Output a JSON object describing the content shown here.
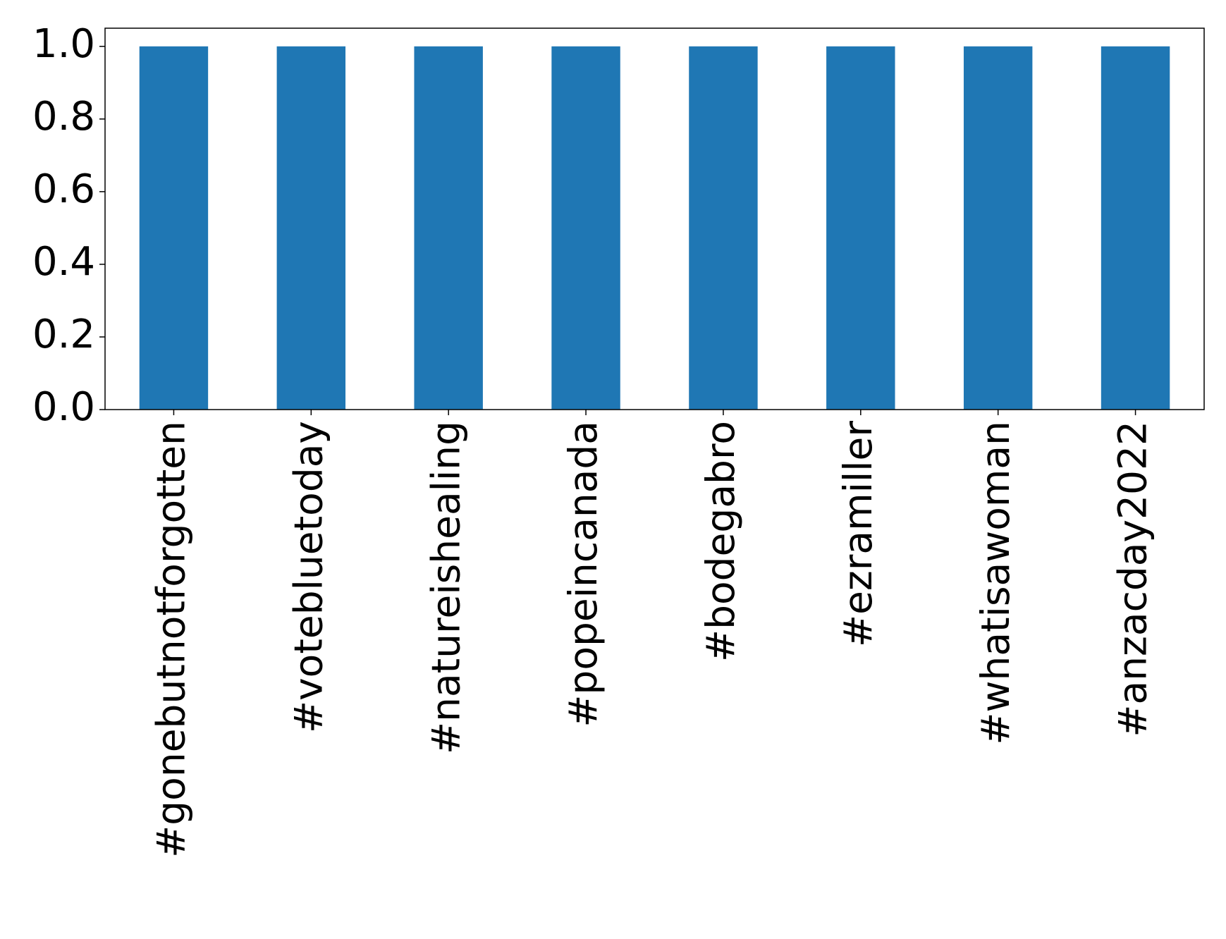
{
  "chart_data": {
    "type": "bar",
    "categories": [
      "#gonebutnotforgotten",
      "#votebluetoday",
      "#natureishealing",
      "#popeincanada",
      "#bodegabro",
      "#ezramiller",
      "#whatisawoman",
      "#anzacday2022"
    ],
    "values": [
      1,
      1,
      1,
      1,
      1,
      1,
      1,
      1
    ],
    "color": "#1f77b4",
    "ylim": [
      0,
      1.05
    ],
    "yticks": [
      {
        "value": 0,
        "label": "0.0"
      },
      {
        "value": 0.2,
        "label": "0.2"
      },
      {
        "value": 0.4,
        "label": "0.4"
      },
      {
        "value": 0.6,
        "label": "0.6"
      },
      {
        "value": 0.8,
        "label": "0.8"
      },
      {
        "value": 1,
        "label": "1.0"
      }
    ],
    "grid": false
  }
}
